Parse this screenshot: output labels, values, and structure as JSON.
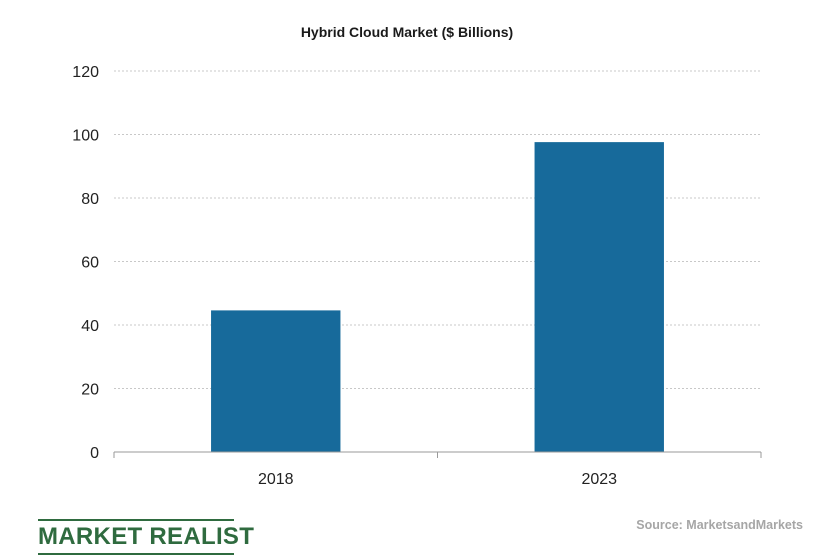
{
  "chart_data": {
    "type": "bar",
    "title": "Hybrid Cloud Market ($ Billions)",
    "categories": [
      "2018",
      "2023"
    ],
    "values": [
      44.6,
      97.6
    ],
    "ylim": [
      0,
      120
    ],
    "yticks": [
      0,
      20,
      40,
      60,
      80,
      100,
      120
    ],
    "grid": true,
    "bar_color": "#176a9b"
  },
  "branding": {
    "logo_text": "MARKET REALIST",
    "color": "#2f6b3f"
  },
  "source": "Source: MarketsandMarkets"
}
